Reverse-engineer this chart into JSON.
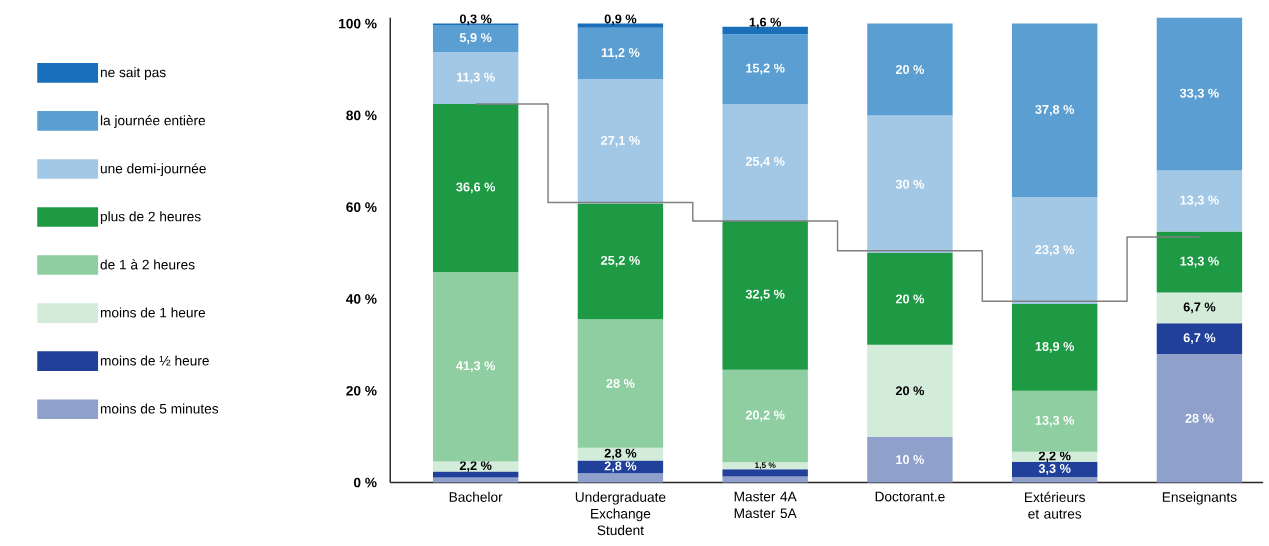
{
  "chart_data": {
    "type": "bar",
    "stacked": true,
    "legend": "left",
    "categories": [
      "Bachelor",
      "Undergraduate Exchange Student",
      "Master 4A Master 5A",
      "Doctorant.e",
      "Extérieurs et autres",
      "Enseignants"
    ],
    "ylim": [
      0,
      101.3
    ],
    "yticks": [
      {
        "value": 0,
        "label": "0 %"
      },
      {
        "value": 20,
        "label": "20 %"
      },
      {
        "value": 40,
        "label": "40 %"
      },
      {
        "value": 60,
        "label": "60 %"
      },
      {
        "value": 80,
        "label": "80 %"
      },
      {
        "value": 100,
        "label": "100 %"
      }
    ],
    "series": [
      {
        "name": "moins de 5 minutes",
        "color": "#8fa0cb",
        "values": [
          1.1,
          2.0,
          1.3,
          10,
          1.2,
          28
        ],
        "value_labels": [
          null,
          null,
          null,
          "10 %",
          null,
          "28 %"
        ]
      },
      {
        "name": "moins de ½ heure",
        "color": "#21409a",
        "values": [
          1.3,
          2.8,
          1.6,
          null,
          3.3,
          6.7
        ],
        "value_labels": [
          null,
          "2,8 %",
          null,
          null,
          "3,3 %",
          "6,7 %"
        ]
      },
      {
        "name": "moins de 1 heure",
        "color": "#d3ebd9",
        "values": [
          2.2,
          2.8,
          1.5,
          20,
          2.2,
          6.7
        ],
        "value_labels": [
          "2,2 %",
          "2,8 %",
          "1,5 %",
          "20 %",
          "2,2 %",
          "6,7 %"
        ]
      },
      {
        "name": "de 1 à 2 heures",
        "color": "#8fcea1",
        "values": [
          41.3,
          28,
          20.2,
          null,
          13.3,
          null
        ],
        "value_labels": [
          "41,3 %",
          "28 %",
          "20,2 %",
          null,
          "13,3 %",
          null
        ]
      },
      {
        "name": "plus de 2 heures",
        "color": "#1e9a45",
        "values": [
          36.6,
          25.2,
          32.5,
          20,
          18.9,
          13.3
        ],
        "value_labels": [
          "36,6 %",
          "25,2 %",
          "32,5 %",
          "20 %",
          "18,9 %",
          "13,3 %"
        ]
      },
      {
        "name": "une demi-journée",
        "color": "#a3c8e5",
        "values": [
          11.3,
          27.1,
          25.4,
          30,
          23.3,
          13.3
        ],
        "value_labels": [
          "11,3 %",
          "27,1 %",
          "25,4 %",
          "30 %",
          "23,3 %",
          "13,3 %"
        ]
      },
      {
        "name": "la journée entière",
        "color": "#5b9fd2",
        "values": [
          5.9,
          11.2,
          15.2,
          20,
          37.8,
          33.3
        ],
        "value_labels": [
          "5,9 %",
          "11,2 %",
          "15,2 %",
          "20 %",
          "37,8 %",
          "33,3 %"
        ]
      },
      {
        "name": "ne sait pas",
        "color": "#1a6fba",
        "values": [
          0.3,
          0.9,
          1.6,
          null,
          null,
          null
        ],
        "value_labels": [
          "0,3 %",
          "0,9 %",
          "1,6 %",
          null,
          null,
          null
        ]
      },
      {
        "type": "step",
        "color": "#808080",
        "values": [
          82.5,
          61,
          57,
          50.5,
          39.5,
          53.5
        ]
      }
    ]
  }
}
